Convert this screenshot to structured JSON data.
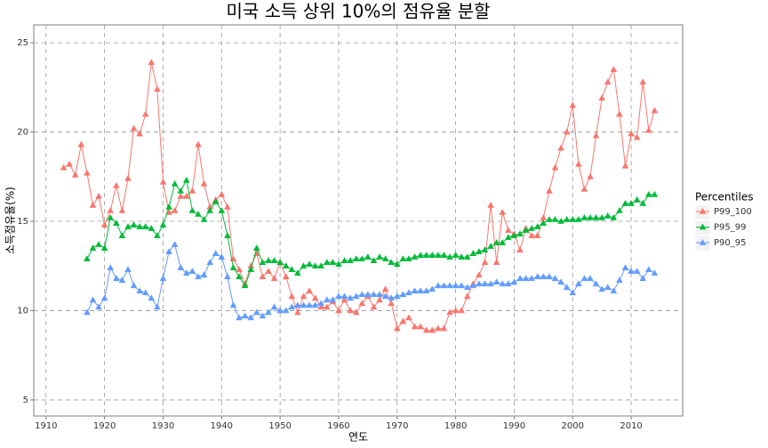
{
  "chart_data": {
    "type": "line",
    "title": "미국 소득 상위 10%의 점유율 분할",
    "xlabel": "연도",
    "ylabel": "소득점유율(%)",
    "legend_title": "Percentiles",
    "legend": "right",
    "grid": true,
    "marker": "triangle",
    "x": [
      1913,
      1914,
      1915,
      1916,
      1917,
      1918,
      1919,
      1920,
      1921,
      1922,
      1923,
      1924,
      1925,
      1926,
      1927,
      1928,
      1929,
      1930,
      1931,
      1932,
      1933,
      1934,
      1935,
      1936,
      1937,
      1938,
      1939,
      1940,
      1941,
      1942,
      1943,
      1944,
      1945,
      1946,
      1947,
      1948,
      1949,
      1950,
      1951,
      1952,
      1953,
      1954,
      1955,
      1956,
      1957,
      1958,
      1959,
      1960,
      1961,
      1962,
      1963,
      1964,
      1965,
      1966,
      1967,
      1968,
      1969,
      1970,
      1971,
      1972,
      1973,
      1974,
      1975,
      1976,
      1977,
      1978,
      1979,
      1980,
      1981,
      1982,
      1983,
      1984,
      1985,
      1986,
      1987,
      1988,
      1989,
      1990,
      1991,
      1992,
      1993,
      1994,
      1995,
      1996,
      1997,
      1998,
      1999,
      2000,
      2001,
      2002,
      2003,
      2004,
      2005,
      2006,
      2007,
      2008,
      2009,
      2010,
      2011,
      2012,
      2013,
      2014
    ],
    "xlim": [
      1907.9,
      2018.8
    ],
    "xticks": [
      1910,
      1920,
      1930,
      1940,
      1950,
      1960,
      1970,
      1980,
      1990,
      2000,
      2010
    ],
    "ylim": [
      4.1,
      26.0
    ],
    "yticks": [
      5,
      10,
      15,
      20,
      25
    ],
    "series": [
      {
        "name": "P99_100",
        "color": "#F8766D",
        "values": [
          18.0,
          18.2,
          17.6,
          19.3,
          17.7,
          15.9,
          16.4,
          14.8,
          15.6,
          17.0,
          15.6,
          17.4,
          20.2,
          19.9,
          21.0,
          23.9,
          22.4,
          17.2,
          15.5,
          15.6,
          16.4,
          16.4,
          16.7,
          19.3,
          17.1,
          15.8,
          16.2,
          16.5,
          15.8,
          12.9,
          12.3,
          11.5,
          12.5,
          13.2,
          11.9,
          12.2,
          11.8,
          12.7,
          11.9,
          10.8,
          9.9,
          10.8,
          11.1,
          10.7,
          10.2,
          10.2,
          10.5,
          10.0,
          10.6,
          10.0,
          9.9,
          10.4,
          10.8,
          10.2,
          10.6,
          11.2,
          10.4,
          9.0,
          9.4,
          9.6,
          9.1,
          9.1,
          8.9,
          8.9,
          9.0,
          9.0,
          9.9,
          10.0,
          10.0,
          10.8,
          11.5,
          12.0,
          12.7,
          15.9,
          12.7,
          15.5,
          14.5,
          14.3,
          13.4,
          14.6,
          14.2,
          14.2,
          15.2,
          16.7,
          18.0,
          19.1,
          20.0,
          21.5,
          18.2,
          16.8,
          17.5,
          19.8,
          21.9,
          22.8,
          23.5,
          21.0,
          18.1,
          19.9,
          19.7,
          22.8,
          20.1,
          21.2
        ]
      },
      {
        "name": "P95_99",
        "color": "#00BA38",
        "values": [
          null,
          null,
          null,
          null,
          12.9,
          13.5,
          13.7,
          13.5,
          15.2,
          14.9,
          14.2,
          14.7,
          14.8,
          14.7,
          14.7,
          14.6,
          14.2,
          14.8,
          15.8,
          17.1,
          16.7,
          17.3,
          15.6,
          15.4,
          15.1,
          15.6,
          16.1,
          15.6,
          14.2,
          12.4,
          11.9,
          11.4,
          12.3,
          13.5,
          12.7,
          12.8,
          12.8,
          12.7,
          12.5,
          12.3,
          12.1,
          12.5,
          12.6,
          12.5,
          12.5,
          12.7,
          12.7,
          12.6,
          12.8,
          12.8,
          12.9,
          12.9,
          13.0,
          12.8,
          13.0,
          12.9,
          12.7,
          12.6,
          12.9,
          12.9,
          13.0,
          13.1,
          13.1,
          13.1,
          13.1,
          13.1,
          13.0,
          13.1,
          13.0,
          13.0,
          13.2,
          13.3,
          13.4,
          13.6,
          13.8,
          13.8,
          14.1,
          14.2,
          14.3,
          14.5,
          14.6,
          14.7,
          14.9,
          15.1,
          15.1,
          15.0,
          15.1,
          15.1,
          15.1,
          15.2,
          15.2,
          15.2,
          15.2,
          15.3,
          15.2,
          15.6,
          16.0,
          16.0,
          16.2,
          16.0,
          16.5,
          16.5
        ]
      },
      {
        "name": "P90_95",
        "color": "#619CFF",
        "values": [
          null,
          null,
          null,
          null,
          9.9,
          10.6,
          10.2,
          10.7,
          12.4,
          11.8,
          11.7,
          12.3,
          11.4,
          11.1,
          11.0,
          10.7,
          10.2,
          11.8,
          13.3,
          13.7,
          12.4,
          12.1,
          12.2,
          11.9,
          12.0,
          12.7,
          13.2,
          13.0,
          11.9,
          10.3,
          9.6,
          9.7,
          9.6,
          9.9,
          9.7,
          9.9,
          10.2,
          10.0,
          10.0,
          10.2,
          10.3,
          10.3,
          10.3,
          10.3,
          10.4,
          10.6,
          10.6,
          10.8,
          10.8,
          10.7,
          10.8,
          10.9,
          10.9,
          10.9,
          10.9,
          10.8,
          10.7,
          10.8,
          10.9,
          11.0,
          11.1,
          11.1,
          11.1,
          11.2,
          11.4,
          11.4,
          11.4,
          11.4,
          11.4,
          11.3,
          11.4,
          11.5,
          11.5,
          11.5,
          11.6,
          11.5,
          11.5,
          11.6,
          11.8,
          11.8,
          11.8,
          11.9,
          11.9,
          11.9,
          11.8,
          11.6,
          11.3,
          11.0,
          11.5,
          11.8,
          11.8,
          11.5,
          11.2,
          11.3,
          11.1,
          11.7,
          12.4,
          12.2,
          12.2,
          11.8,
          12.3,
          12.1
        ]
      }
    ]
  }
}
